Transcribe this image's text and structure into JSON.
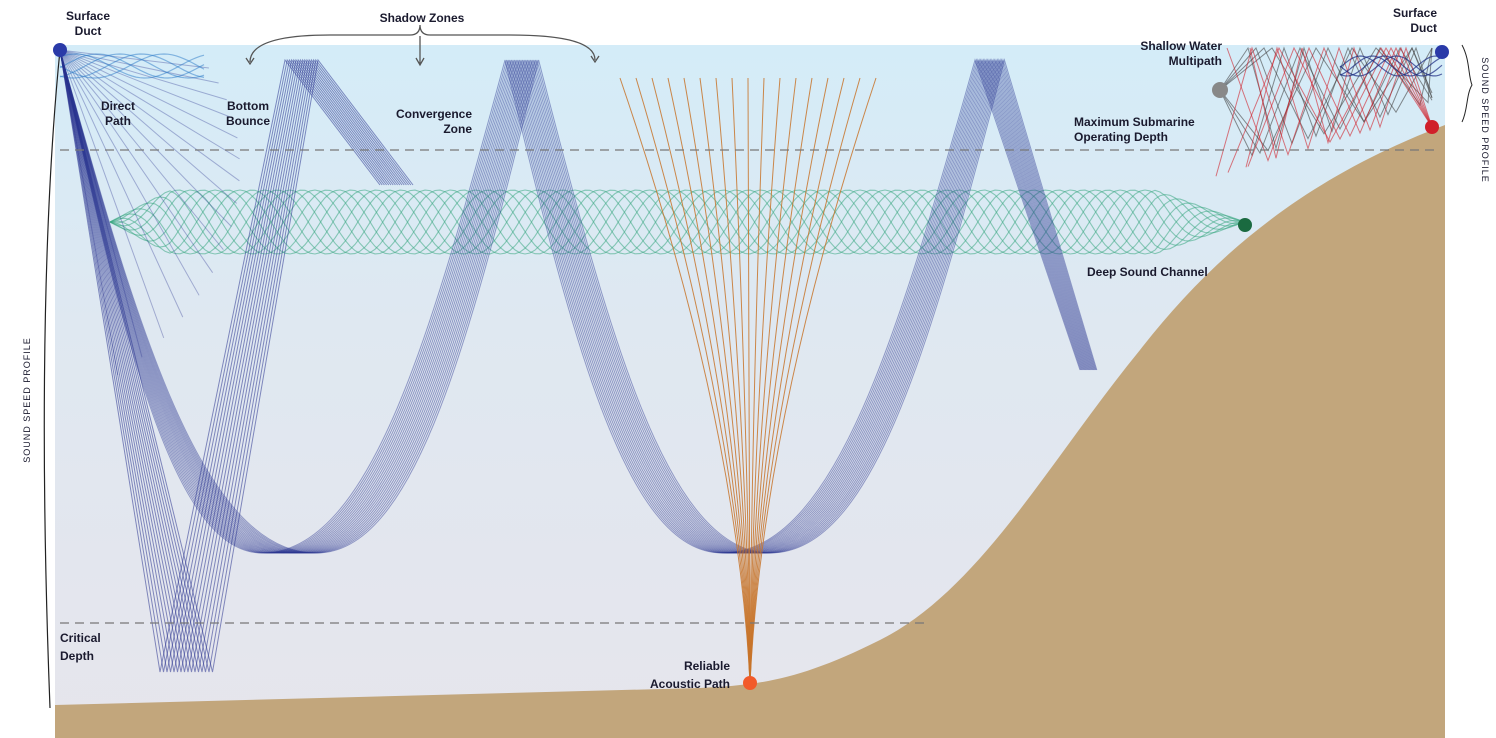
{
  "labels": {
    "surface_duct_left": [
      "Surface",
      "Duct"
    ],
    "direct_path": [
      "Direct",
      "Path"
    ],
    "shadow_zones": [
      "Shadow Zones"
    ],
    "bottom_bounce": [
      "Bottom",
      "Bounce"
    ],
    "convergence_zone": [
      "Convergence",
      "Zone"
    ],
    "shallow_water_multipath": [
      "Shallow Water",
      "Multipath"
    ],
    "surface_duct_right": [
      "Surface",
      "Duct"
    ],
    "max_operating_depth": [
      "Maximum Submarine",
      "Operating Depth"
    ],
    "deep_sound_channel": [
      "Deep Sound Channel"
    ],
    "critical_depth": [
      "Critical",
      "Depth"
    ],
    "reliable_acoustic_path": [
      "Reliable",
      "Acoustic Path"
    ]
  },
  "sound_speed_profile_left": "SOUND SPEED PROFILE",
  "sound_speed_profile_right": "SOUND SPEED PROFILE"
}
